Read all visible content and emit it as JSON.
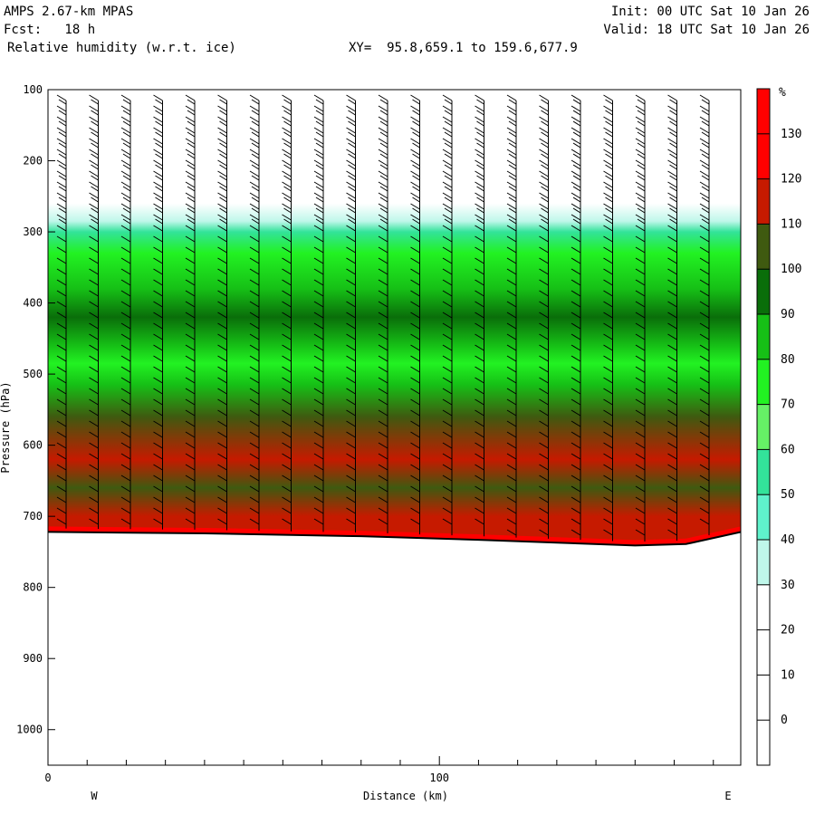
{
  "header": {
    "model": "AMPS 2.67-km MPAS",
    "fcst": "Fcst:   18 h",
    "field": "Relative humidity (w.r.t. ice)",
    "xy": "XY=  95.8,659.1 to 159.6,677.9",
    "init": "Init: 00 UTC Sat 10 Jan 26",
    "valid": "Valid: 18 UTC Sat 10 Jan 26"
  },
  "chart_data": {
    "type": "heatmap",
    "title": "Relative humidity (w.r.t. ice)",
    "xlabel": "Distance (km)",
    "ylabel": "Pressure (hPa)",
    "xlim": [
      0,
      177
    ],
    "ylim": [
      1050,
      100
    ],
    "x_ticks": [
      0,
      100
    ],
    "y_ticks": [
      100,
      200,
      300,
      400,
      500,
      600,
      700,
      800,
      900,
      1000
    ],
    "x_end_labels": {
      "left": "W",
      "right": "E"
    },
    "colorbar": {
      "unit": "%",
      "ticks": [
        0,
        10,
        20,
        30,
        40,
        50,
        60,
        70,
        80,
        90,
        100,
        110,
        120,
        130
      ],
      "bands": [
        {
          "from": -10,
          "to": 30,
          "color": "#ffffff"
        },
        {
          "from": 30,
          "to": 40,
          "color": "#bff7ea"
        },
        {
          "from": 40,
          "to": 50,
          "color": "#5ff2cc"
        },
        {
          "from": 50,
          "to": 60,
          "color": "#33e39a"
        },
        {
          "from": 60,
          "to": 70,
          "color": "#66f066"
        },
        {
          "from": 70,
          "to": 80,
          "color": "#22f222"
        },
        {
          "from": 80,
          "to": 90,
          "color": "#16c016"
        },
        {
          "from": 90,
          "to": 100,
          "color": "#0a6e0a"
        },
        {
          "from": 100,
          "to": 110,
          "color": "#3f5a10"
        },
        {
          "from": 110,
          "to": 120,
          "color": "#c61a00"
        },
        {
          "from": 120,
          "to": 140,
          "color": "#ff0000"
        }
      ]
    },
    "rh_profile": [
      {
        "p": 100,
        "rh": 10
      },
      {
        "p": 260,
        "rh": 20
      },
      {
        "p": 285,
        "rh": 35
      },
      {
        "p": 300,
        "rh": 55
      },
      {
        "p": 330,
        "rh": 72
      },
      {
        "p": 380,
        "rh": 85
      },
      {
        "p": 420,
        "rh": 95
      },
      {
        "p": 460,
        "rh": 88
      },
      {
        "p": 485,
        "rh": 74
      },
      {
        "p": 515,
        "rh": 86
      },
      {
        "p": 560,
        "rh": 102
      },
      {
        "p": 620,
        "rh": 115
      },
      {
        "p": 660,
        "rh": 108
      },
      {
        "p": 700,
        "rh": 112
      }
    ],
    "terrain_pressure": [
      {
        "x": 0,
        "p": 722
      },
      {
        "x": 40,
        "p": 724
      },
      {
        "x": 80,
        "p": 728
      },
      {
        "x": 110,
        "p": 733
      },
      {
        "x": 130,
        "p": 737
      },
      {
        "x": 150,
        "p": 741
      },
      {
        "x": 163,
        "p": 739
      },
      {
        "x": 177,
        "p": 722
      }
    ]
  }
}
